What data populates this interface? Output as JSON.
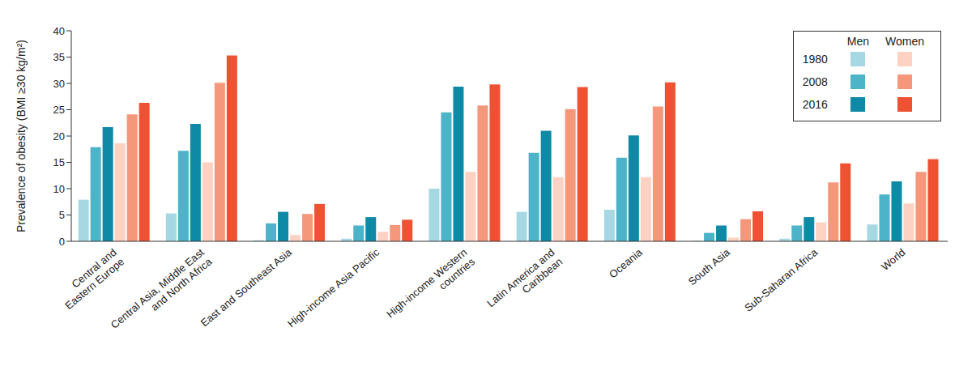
{
  "chart_data": {
    "type": "bar",
    "ylabel": "Prevalence of obesity (BMI ≥30 kg/m²)",
    "categories": [
      "Central and\nEastern Europe",
      "Central Asia, Middle East\nand North Africa",
      "East and Southeast Asia",
      "High-income Asia Pacific",
      "High-income Western\ncountries",
      "Latin America and\nCaribbean",
      "Oceania",
      "South Asia",
      "Sub-Saharan Africa",
      "World"
    ],
    "series": [
      {
        "name": "1980",
        "group": "Men",
        "color": "#a6d8e4",
        "values": [
          7.9,
          5.3,
          0.2,
          0.5,
          10.0,
          5.6,
          6.0,
          0.1,
          0.5,
          3.2
        ]
      },
      {
        "name": "2008",
        "group": "Men",
        "color": "#4cb3c9",
        "values": [
          17.9,
          17.2,
          3.4,
          3.0,
          24.5,
          16.8,
          15.9,
          1.6,
          3.0,
          8.9
        ]
      },
      {
        "name": "2016",
        "group": "Men",
        "color": "#0f8aa6",
        "values": [
          21.7,
          22.3,
          5.6,
          4.6,
          29.4,
          21.0,
          20.1,
          3.0,
          4.6,
          11.4
        ]
      },
      {
        "name": "1980",
        "group": "Women",
        "color": "#fdd2c2",
        "values": [
          18.6,
          15.0,
          1.2,
          1.8,
          13.2,
          12.2,
          12.2,
          0.7,
          3.6,
          7.2
        ]
      },
      {
        "name": "2008",
        "group": "Women",
        "color": "#f4977a",
        "values": [
          24.1,
          30.1,
          5.2,
          3.1,
          25.8,
          25.1,
          25.6,
          4.2,
          11.2,
          13.2
        ]
      },
      {
        "name": "2016",
        "group": "Women",
        "color": "#ee5232",
        "values": [
          26.3,
          35.3,
          7.1,
          4.1,
          29.8,
          29.3,
          30.2,
          5.7,
          14.8,
          15.6
        ]
      }
    ],
    "ylim": [
      0,
      40
    ],
    "yticks": [
      0,
      5,
      10,
      15,
      20,
      25,
      30,
      35,
      40
    ],
    "grid": false,
    "legend": "upper right"
  }
}
